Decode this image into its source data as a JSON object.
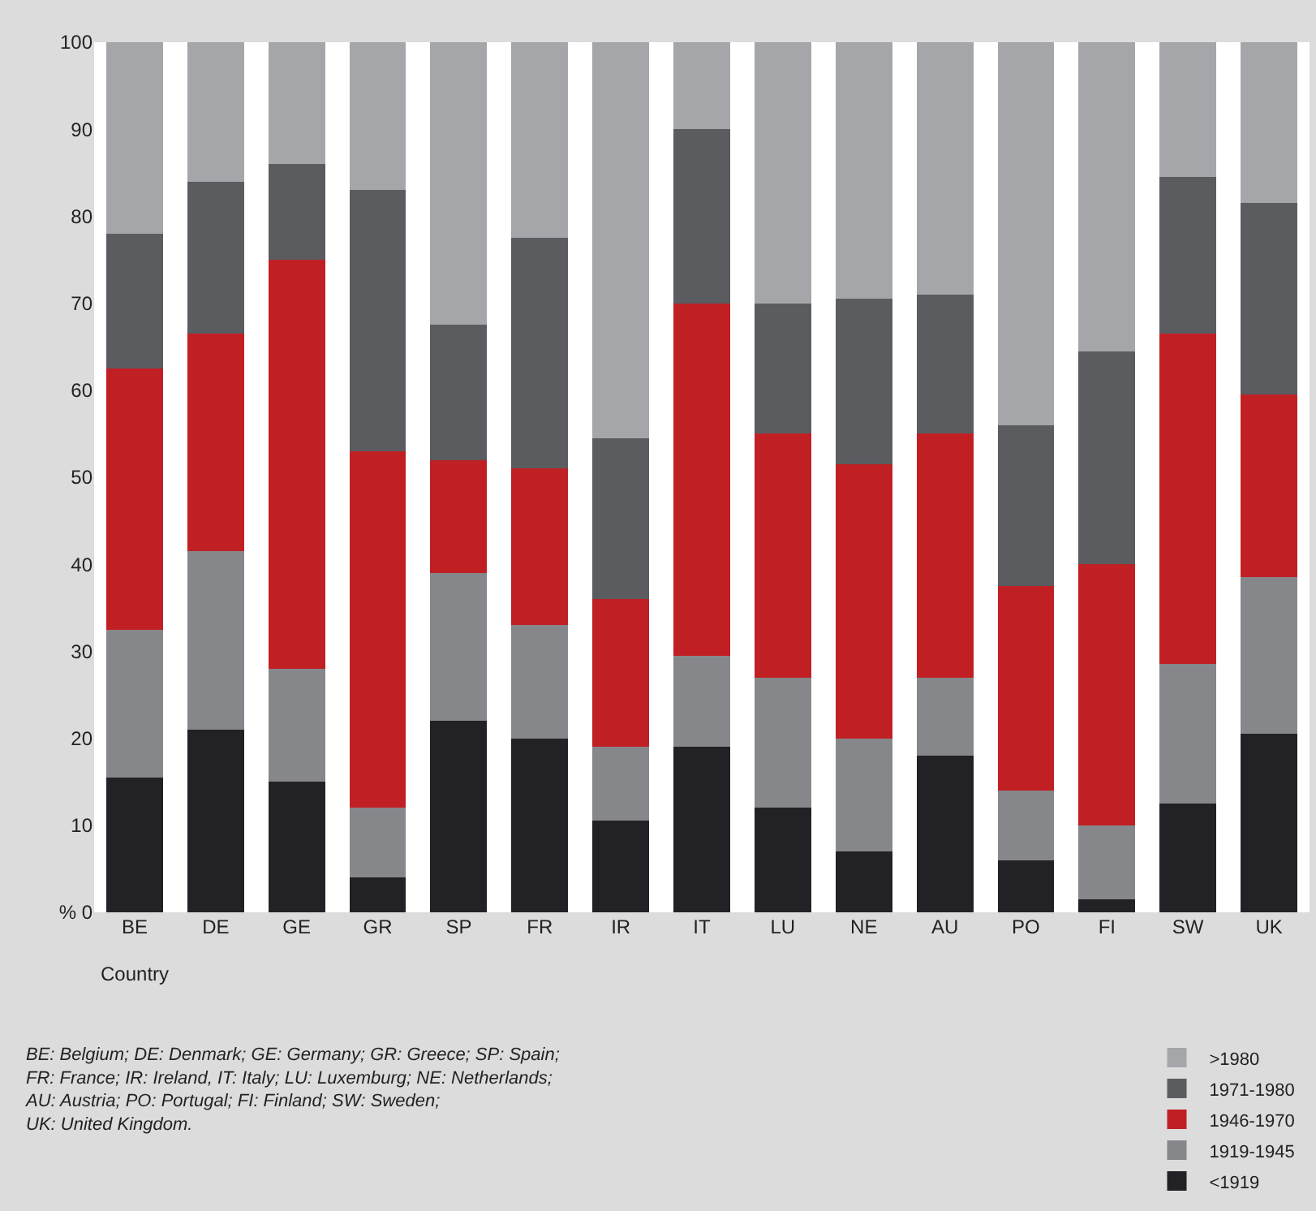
{
  "chart_data": {
    "type": "bar",
    "stacked": true,
    "xlabel": "Country",
    "categories": [
      "BE",
      "DE",
      "GE",
      "GR",
      "SP",
      "FR",
      "IR",
      "IT",
      "LU",
      "NE",
      "AU",
      "PO",
      "FI",
      "SW",
      "UK"
    ],
    "series": [
      {
        "name": "<1919",
        "color": "#222226",
        "values": [
          15.5,
          21,
          15,
          4,
          22,
          20,
          10.5,
          19,
          12,
          7,
          18,
          6,
          1.5,
          12.5,
          20.5
        ]
      },
      {
        "name": "1919-1945",
        "color": "#86878b",
        "values": [
          17,
          20.5,
          13,
          8,
          17,
          13,
          8.5,
          10.5,
          15,
          13,
          9,
          8,
          8.5,
          16,
          18
        ]
      },
      {
        "name": "1946-1970",
        "color": "#c02024",
        "values": [
          30,
          25,
          47,
          41,
          13,
          18,
          17,
          40.5,
          28,
          31.5,
          28,
          23.5,
          30,
          38,
          21
        ]
      },
      {
        "name": "1971-1980",
        "color": "#5a5c60",
        "values": [
          15.5,
          17.5,
          11,
          30,
          15.5,
          26.5,
          18.5,
          20,
          15,
          19,
          16,
          18.5,
          24.5,
          18,
          22
        ]
      },
      {
        "name": ">1980",
        "color": "#a5a6aa",
        "values": [
          22,
          16,
          14,
          17,
          32.5,
          22.5,
          45.5,
          10,
          30,
          29.5,
          29,
          44,
          35.5,
          15.5,
          18.5
        ]
      }
    ],
    "ylim": [
      0,
      100
    ],
    "yticks": [
      {
        "value": 0,
        "label": "% 0"
      },
      10,
      20,
      30,
      40,
      50,
      60,
      70,
      80,
      90,
      100
    ],
    "legend": "bottom right",
    "annotations": [
      "BE: Belgium; DE: Denmark; GE: Germany; GR: Greece; SP: Spain;\nFR: France; IR: Ireland, IT: Italy; LU: Luxemburg; NE: Netherlands;\nAU: Austria; PO: Portugal; FI: Finland; SW: Sweden;\nUK: United Kingdom."
    ]
  }
}
